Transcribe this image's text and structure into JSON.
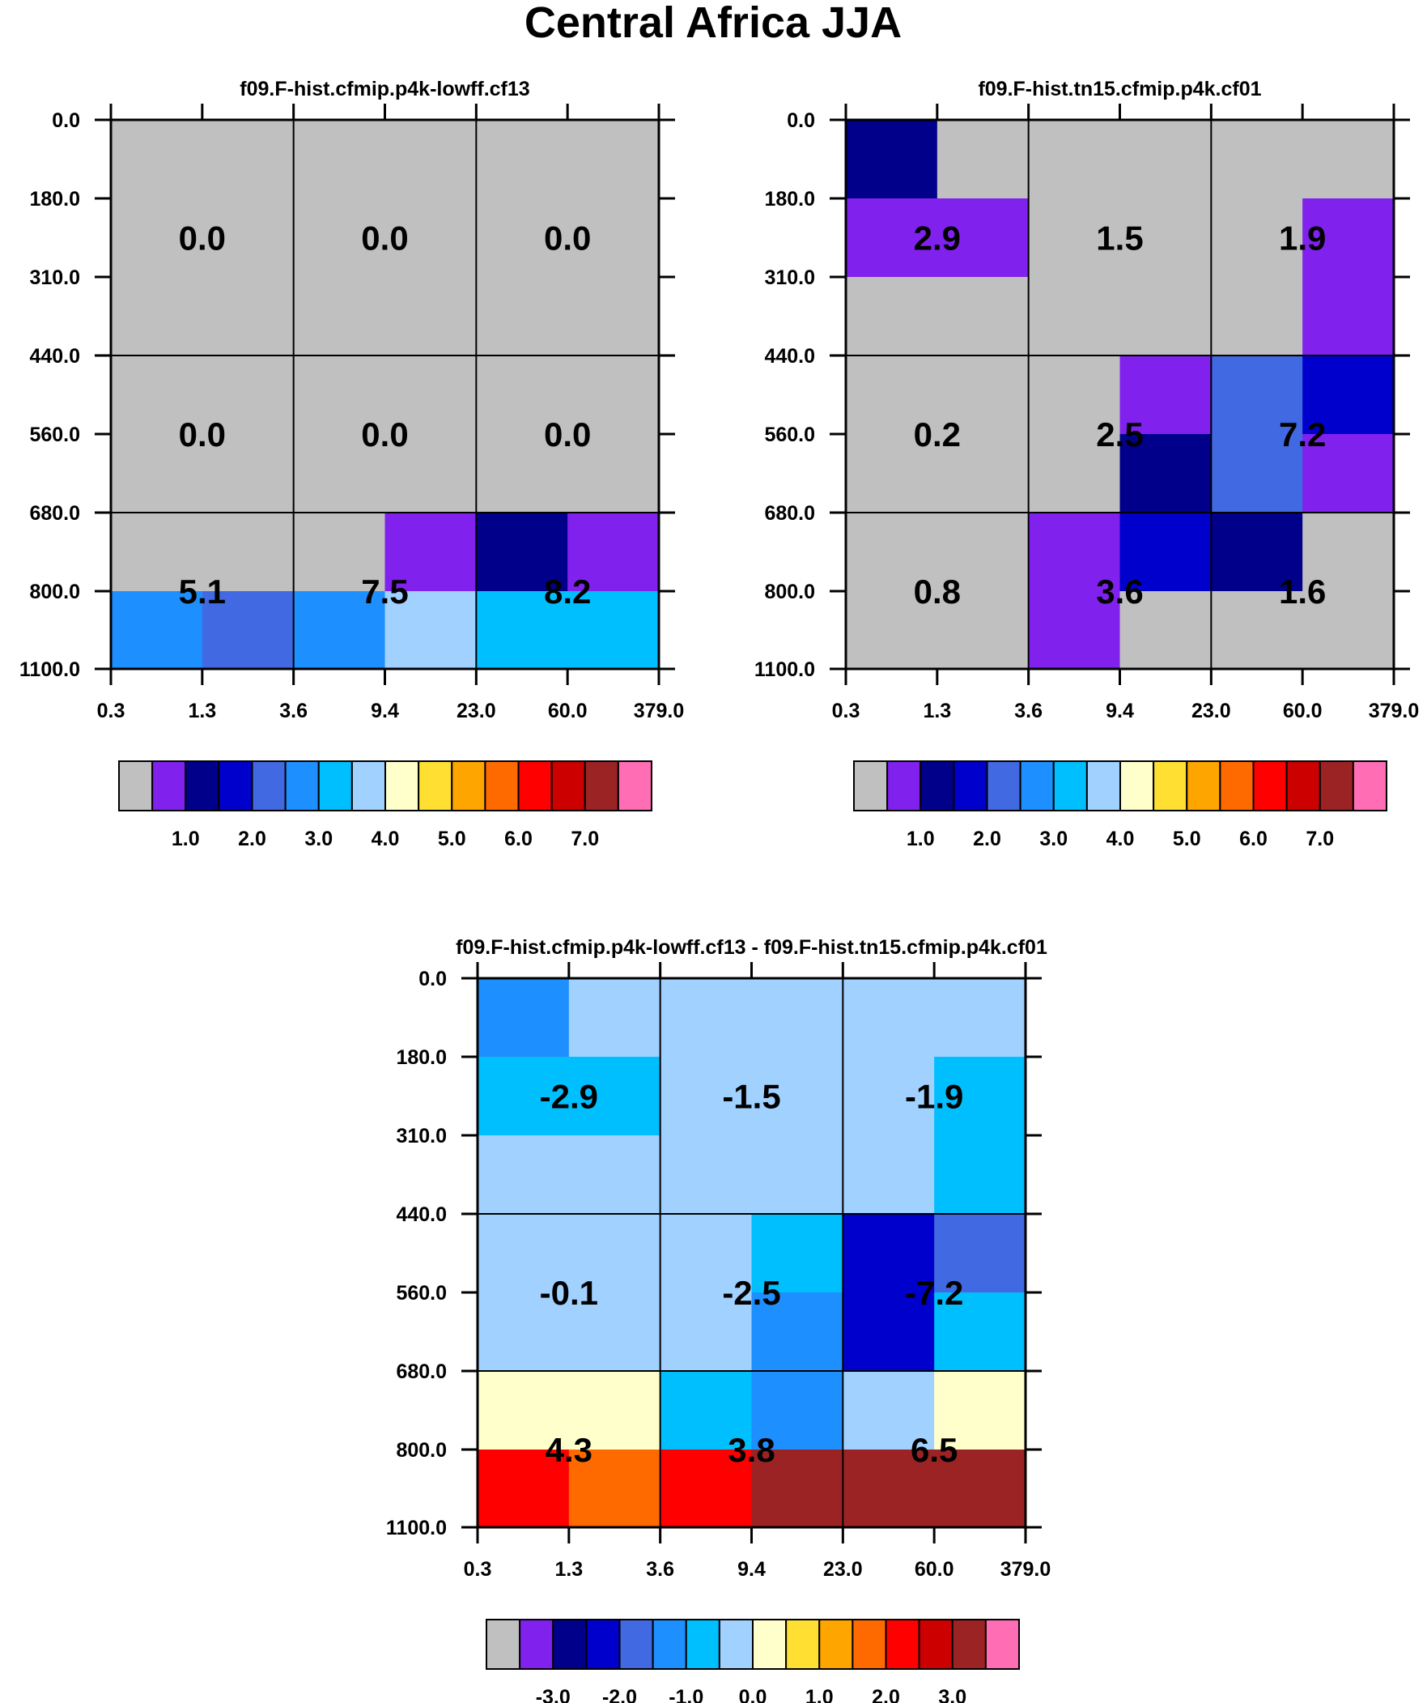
{
  "figure_title": "Central Africa JJA",
  "colors": {
    "palette": [
      "#c0c0c0",
      "#8021ee",
      "#00008b",
      "#0000cd",
      "#4169e1",
      "#1e8fff",
      "#00bfff",
      "#a0d1ff",
      "#ffffcc",
      "#ffe032",
      "#ffa500",
      "#ff6a00",
      "#ff0000",
      "#cd0000",
      "#9c2323",
      "#ff6eb4"
    ],
    "grid_line": "#000000",
    "cell_text": "#000000"
  },
  "chart_data": [
    {
      "type": "heatmap",
      "title": "f09.F-hist.cfmip.p4k-lowff.cf13",
      "x_tick_labels": [
        "0.3",
        "1.3",
        "3.6",
        "9.4",
        "23.0",
        "60.0",
        "379.0"
      ],
      "y_tick_labels": [
        "0.0",
        "180.0",
        "310.0",
        "440.0",
        "560.0",
        "680.0",
        "800.0",
        "1100.0"
      ],
      "cells": [
        [
          0,
          0,
          0,
          0,
          0,
          0
        ],
        [
          0,
          0,
          0,
          0,
          0,
          0
        ],
        [
          0,
          0,
          0,
          0,
          0,
          0
        ],
        [
          0,
          0,
          0,
          0,
          0,
          0
        ],
        [
          0,
          0,
          0,
          0,
          0,
          0
        ],
        [
          0,
          0,
          0,
          1,
          2,
          1
        ],
        [
          5,
          4,
          5,
          7,
          6,
          6
        ]
      ],
      "box_values": [
        [
          "0.0",
          "0.0",
          "0.0"
        ],
        [
          "0.0",
          "0.0",
          "0.0"
        ],
        [
          "5.1",
          "7.5",
          "8.2"
        ]
      ],
      "colorbar_labels": [
        "1.0",
        "2.0",
        "3.0",
        "4.0",
        "5.0",
        "6.0",
        "7.0"
      ]
    },
    {
      "type": "heatmap",
      "title": "f09.F-hist.tn15.cfmip.p4k.cf01",
      "x_tick_labels": [
        "0.3",
        "1.3",
        "3.6",
        "9.4",
        "23.0",
        "60.0",
        "379.0"
      ],
      "y_tick_labels": [
        "0.0",
        "180.0",
        "310.0",
        "440.0",
        "560.0",
        "680.0",
        "800.0",
        "1100.0"
      ],
      "cells": [
        [
          2,
          0,
          0,
          0,
          0,
          0
        ],
        [
          1,
          1,
          0,
          0,
          0,
          1
        ],
        [
          0,
          0,
          0,
          0,
          0,
          1
        ],
        [
          0,
          0,
          0,
          1,
          4,
          3
        ],
        [
          0,
          0,
          0,
          2,
          4,
          1
        ],
        [
          0,
          0,
          1,
          3,
          2,
          0
        ],
        [
          0,
          0,
          1,
          0,
          0,
          0
        ]
      ],
      "box_values": [
        [
          "2.9",
          "1.5",
          "1.9"
        ],
        [
          "0.2",
          "2.5",
          "7.2"
        ],
        [
          "0.8",
          "3.6",
          "1.6"
        ]
      ],
      "colorbar_labels": [
        "1.0",
        "2.0",
        "3.0",
        "4.0",
        "5.0",
        "6.0",
        "7.0"
      ]
    },
    {
      "type": "heatmap",
      "title": "f09.F-hist.cfmip.p4k-lowff.cf13 - f09.F-hist.tn15.cfmip.p4k.cf01",
      "x_tick_labels": [
        "0.3",
        "1.3",
        "3.6",
        "9.4",
        "23.0",
        "60.0",
        "379.0"
      ],
      "y_tick_labels": [
        "0.0",
        "180.0",
        "310.0",
        "440.0",
        "560.0",
        "680.0",
        "800.0",
        "1100.0"
      ],
      "cells": [
        [
          5,
          7,
          7,
          7,
          7,
          7
        ],
        [
          6,
          6,
          7,
          7,
          7,
          6
        ],
        [
          7,
          7,
          7,
          7,
          7,
          6
        ],
        [
          7,
          7,
          7,
          6,
          3,
          4
        ],
        [
          7,
          7,
          7,
          5,
          3,
          6
        ],
        [
          8,
          8,
          6,
          5,
          7,
          8
        ],
        [
          12,
          11,
          12,
          14,
          14,
          14
        ]
      ],
      "box_values": [
        [
          "-2.9",
          "-1.5",
          "-1.9"
        ],
        [
          "-0.1",
          "-2.5",
          "-7.2"
        ],
        [
          "4.3",
          "3.8",
          "6.5"
        ]
      ],
      "colorbar_labels": [
        "-3.0",
        "-2.0",
        "-1.0",
        "0.0",
        "1.0",
        "2.0",
        "3.0"
      ]
    }
  ]
}
